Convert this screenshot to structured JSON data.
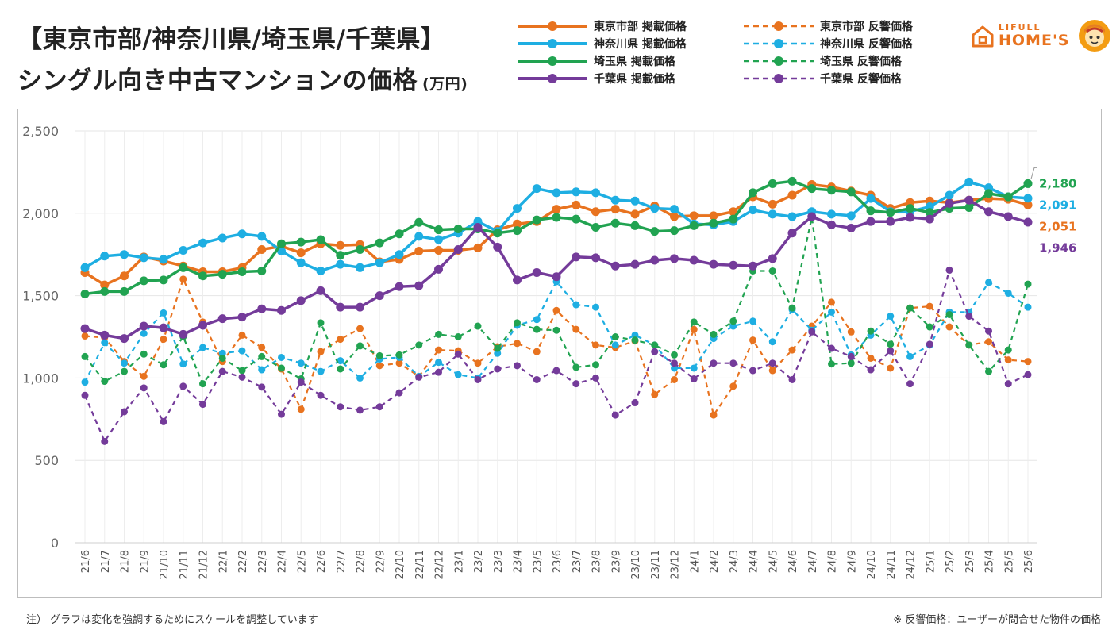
{
  "title": {
    "line1": "【東京市部/神奈川県/埼玉県/千葉県】",
    "line2": "シングル向き中古マンションの価格",
    "unit": "(万円)"
  },
  "logo": {
    "top": "LIFULL",
    "main": "HOME'S"
  },
  "notes": {
    "left": "注） グラフは変化を強調するためにスケールを調整しています",
    "right": "※ 反響価格：ユーザーが問合せた物件の価格"
  },
  "colors": {
    "tokyo": "#e8731f",
    "kanagawa": "#1eaee2",
    "saitama": "#21a351",
    "chiba": "#743b9a"
  },
  "chart_data": {
    "type": "line",
    "ylim": [
      0,
      2500
    ],
    "yticks": [
      0,
      500,
      1000,
      1500,
      2000,
      2500
    ],
    "ytick_labels": [
      "0",
      "500",
      "1,000",
      "1,500",
      "2,000",
      "2,500"
    ],
    "grid": true,
    "legend_position": "top-right",
    "categories": [
      "21/6",
      "21/7",
      "21/8",
      "21/9",
      "21/10",
      "21/11",
      "21/12",
      "22/1",
      "22/2",
      "22/3",
      "22/4",
      "22/5",
      "22/6",
      "22/7",
      "22/8",
      "22/9",
      "22/10",
      "22/11",
      "22/12",
      "23/1",
      "23/2",
      "23/3",
      "23/4",
      "23/5",
      "23/6",
      "23/7",
      "23/8",
      "23/9",
      "23/10",
      "23/11",
      "23/12",
      "24/1",
      "24/2",
      "24/3",
      "24/4",
      "24/5",
      "24/6",
      "24/7",
      "24/8",
      "24/9",
      "24/10",
      "24/11",
      "24/12",
      "25/1",
      "25/2",
      "25/3",
      "25/4",
      "25/5",
      "25/6"
    ],
    "series": [
      {
        "name": "東京市部 掲載価格",
        "region": "tokyo",
        "style": "solid",
        "end_label": "2,051",
        "values": [
          1640,
          1565,
          1620,
          1735,
          1710,
          1680,
          1645,
          1645,
          1670,
          1780,
          1800,
          1760,
          1815,
          1805,
          1810,
          1705,
          1720,
          1770,
          1775,
          1775,
          1790,
          1900,
          1935,
          1950,
          2025,
          2050,
          2010,
          2025,
          1995,
          2045,
          1980,
          1985,
          1985,
          2010,
          2100,
          2055,
          2110,
          2175,
          2160,
          2135,
          2110,
          2030,
          2065,
          2075,
          2065,
          2080,
          2090,
          2085,
          2051
        ]
      },
      {
        "name": "神奈川県 掲載価格",
        "region": "kanagawa",
        "style": "solid",
        "end_label": "2,091",
        "values": [
          1670,
          1740,
          1750,
          1730,
          1720,
          1775,
          1820,
          1850,
          1875,
          1860,
          1770,
          1700,
          1650,
          1690,
          1670,
          1700,
          1750,
          1860,
          1840,
          1880,
          1950,
          1890,
          2030,
          2150,
          2125,
          2130,
          2125,
          2080,
          2075,
          2030,
          2025,
          1935,
          1930,
          1950,
          2020,
          1995,
          1980,
          2010,
          1995,
          1985,
          2090,
          2010,
          2010,
          2040,
          2110,
          2190,
          2155,
          2100,
          2091
        ]
      },
      {
        "name": "埼玉県 掲載価格",
        "region": "saitama",
        "style": "solid",
        "end_label": "2,180",
        "values": [
          1510,
          1525,
          1525,
          1590,
          1595,
          1670,
          1620,
          1630,
          1645,
          1650,
          1815,
          1825,
          1840,
          1745,
          1780,
          1820,
          1875,
          1945,
          1900,
          1905,
          1905,
          1880,
          1895,
          1960,
          1975,
          1965,
          1915,
          1940,
          1925,
          1890,
          1895,
          1925,
          1940,
          1965,
          2125,
          2180,
          2195,
          2150,
          2140,
          2130,
          2015,
          2005,
          2030,
          2005,
          2030,
          2035,
          2120,
          2100,
          2180
        ]
      },
      {
        "name": "千葉県 掲載価格",
        "region": "chiba",
        "style": "solid",
        "end_label": "1,946",
        "values": [
          1300,
          1260,
          1240,
          1315,
          1305,
          1265,
          1320,
          1360,
          1370,
          1420,
          1410,
          1470,
          1530,
          1430,
          1430,
          1500,
          1555,
          1560,
          1660,
          1780,
          1915,
          1795,
          1595,
          1640,
          1615,
          1735,
          1730,
          1680,
          1690,
          1715,
          1725,
          1715,
          1690,
          1685,
          1680,
          1725,
          1880,
          1980,
          1930,
          1910,
          1950,
          1950,
          1975,
          1965,
          2060,
          2080,
          2010,
          1980,
          1946
        ]
      },
      {
        "name": "東京市部 反響価格",
        "region": "tokyo",
        "style": "dashed",
        "values": [
          1255,
          1245,
          1100,
          1010,
          1235,
          1600,
          1340,
          1100,
          1260,
          1185,
          1055,
          810,
          1160,
          1235,
          1300,
          1075,
          1090,
          1010,
          1170,
          1165,
          1090,
          1190,
          1210,
          1160,
          1410,
          1295,
          1200,
          1185,
          1225,
          900,
          990,
          1295,
          775,
          950,
          1230,
          1045,
          1170,
          1315,
          1460,
          1280,
          1120,
          1060,
          1425,
          1435,
          1310,
          1200,
          1220,
          1110,
          1100
        ]
      },
      {
        "name": "神奈川県 反響価格",
        "region": "kanagawa",
        "style": "dashed",
        "values": [
          975,
          1215,
          1090,
          1270,
          1395,
          1085,
          1185,
          1150,
          1165,
          1050,
          1125,
          1090,
          1040,
          1105,
          1000,
          1115,
          1125,
          1010,
          1095,
          1020,
          1000,
          1150,
          1320,
          1355,
          1585,
          1445,
          1430,
          1200,
          1260,
          1200,
          1060,
          1060,
          1240,
          1315,
          1345,
          1220,
          1415,
          1290,
          1400,
          1140,
          1260,
          1375,
          1130,
          1200,
          1400,
          1400,
          1580,
          1515,
          1430
        ]
      },
      {
        "name": "埼玉県 反響価格",
        "region": "saitama",
        "style": "dashed",
        "values": [
          1130,
          980,
          1040,
          1145,
          1080,
          1250,
          965,
          1120,
          1045,
          1130,
          1060,
          995,
          1335,
          1055,
          1195,
          1135,
          1140,
          1200,
          1265,
          1250,
          1315,
          1180,
          1335,
          1295,
          1290,
          1065,
          1080,
          1250,
          1230,
          1200,
          1140,
          1340,
          1265,
          1345,
          1650,
          1650,
          1425,
          1975,
          1085,
          1090,
          1285,
          1205,
          1425,
          1310,
          1385,
          1200,
          1040,
          1170,
          1570
        ]
      },
      {
        "name": "千葉県 反響価格",
        "region": "chiba",
        "style": "dashed",
        "values": [
          895,
          615,
          795,
          940,
          735,
          950,
          840,
          1040,
          1005,
          945,
          780,
          975,
          895,
          825,
          805,
          825,
          910,
          1005,
          1035,
          1145,
          990,
          1055,
          1075,
          990,
          1045,
          965,
          1000,
          775,
          850,
          1160,
          1090,
          995,
          1090,
          1090,
          1045,
          1090,
          990,
          1280,
          1180,
          1130,
          1050,
          1165,
          965,
          1205,
          1655,
          1375,
          1285,
          965,
          1020
        ]
      }
    ]
  }
}
